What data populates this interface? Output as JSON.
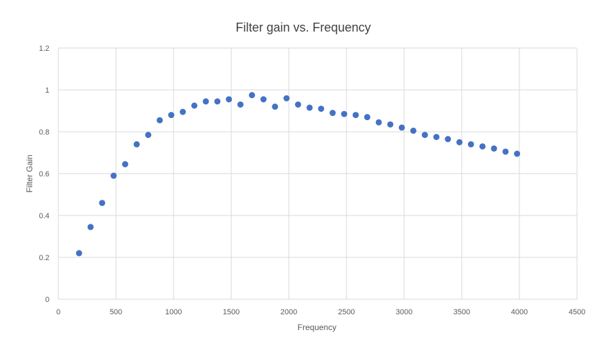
{
  "chart_data": {
    "type": "scatter",
    "title": "Filter gain vs. Frequency",
    "xlabel": "Frequency",
    "ylabel": "Filter Gain",
    "xlim": [
      0,
      4500
    ],
    "ylim": [
      0,
      1.2
    ],
    "xticks": [
      0,
      500,
      1000,
      1500,
      2000,
      2500,
      3000,
      3500,
      4000,
      4500
    ],
    "yticks": [
      0,
      0.2,
      0.4,
      0.6,
      0.8,
      1,
      1.2
    ],
    "grid": true,
    "marker_color": "#4472C4",
    "series": [
      {
        "x": [
          180,
          280,
          380,
          480,
          580,
          680,
          780,
          880,
          980,
          1080,
          1180,
          1280,
          1380,
          1480,
          1580,
          1680,
          1780,
          1880,
          1980,
          2080,
          2180,
          2280,
          2380,
          2480,
          2580,
          2680,
          2780,
          2880,
          2980,
          3080,
          3180,
          3280,
          3380,
          3480,
          3580,
          3680,
          3780,
          3880,
          3980
        ],
        "y": [
          0.22,
          0.345,
          0.46,
          0.59,
          0.645,
          0.74,
          0.785,
          0.855,
          0.88,
          0.895,
          0.925,
          0.945,
          0.945,
          0.955,
          0.93,
          0.975,
          0.955,
          0.92,
          0.96,
          0.93,
          0.915,
          0.91,
          0.89,
          0.885,
          0.88,
          0.87,
          0.845,
          0.835,
          0.82,
          0.805,
          0.785,
          0.775,
          0.765,
          0.75,
          0.74,
          0.73,
          0.72,
          0.705,
          0.695
        ]
      }
    ]
  }
}
